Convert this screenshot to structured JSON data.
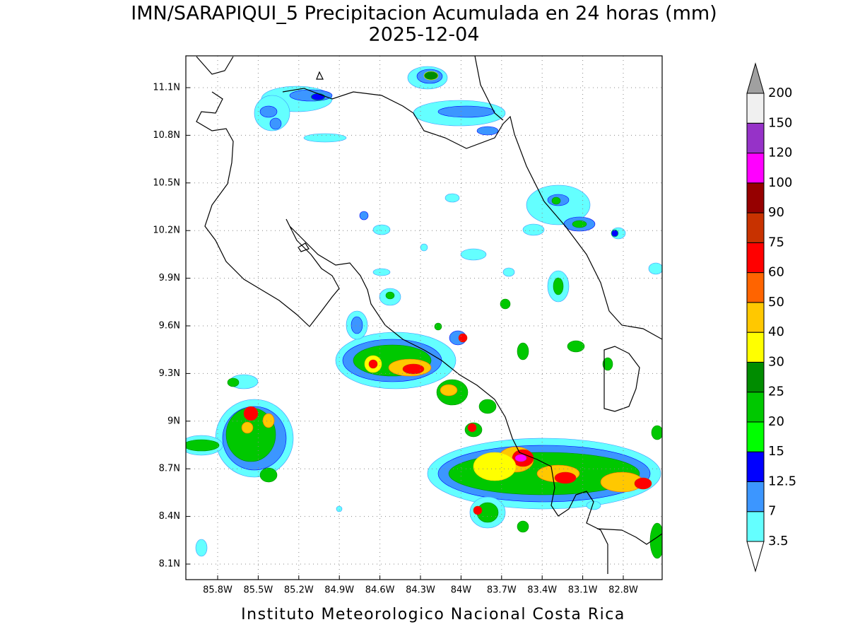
{
  "title": "IMN/SARAPIQUI_5 Precipitacion Acumulada en 24 horas (mm)",
  "subtitle": "2025-12-04",
  "map": {
    "lon_ticks": [
      {
        "value": -85.8,
        "label": "85.8W"
      },
      {
        "value": -85.5,
        "label": "85.5W"
      },
      {
        "value": -85.2,
        "label": "85.2W"
      },
      {
        "value": -84.9,
        "label": "84.9W"
      },
      {
        "value": -84.6,
        "label": "84.6W"
      },
      {
        "value": -84.3,
        "label": "84.3W"
      },
      {
        "value": -84.0,
        "label": "84W"
      },
      {
        "value": -83.7,
        "label": "83.7W"
      },
      {
        "value": -83.4,
        "label": "83.4W"
      },
      {
        "value": -83.1,
        "label": "83.1W"
      },
      {
        "value": -82.8,
        "label": "82.8W"
      }
    ],
    "lat_ticks": [
      {
        "value": 11.1,
        "label": "11.1N"
      },
      {
        "value": 10.8,
        "label": "10.8N"
      },
      {
        "value": 10.5,
        "label": "10.5N"
      },
      {
        "value": 10.2,
        "label": "10.2N"
      },
      {
        "value": 9.9,
        "label": "9.9N"
      },
      {
        "value": 9.6,
        "label": "9.6N"
      },
      {
        "value": 9.3,
        "label": "9.3N"
      },
      {
        "value": 9.0,
        "label": "9N"
      },
      {
        "value": 8.7,
        "label": "8.7N"
      },
      {
        "value": 8.4,
        "label": "8.4N"
      },
      {
        "value": 8.1,
        "label": "8.1N"
      }
    ],
    "grid": true
  },
  "colorbar": {
    "levels": [
      3.5,
      7,
      12.5,
      15,
      20,
      25,
      30,
      40,
      50,
      60,
      75,
      90,
      100,
      120,
      150,
      200
    ],
    "colors": [
      "#64ffff",
      "#3c96ff",
      "#0000ff",
      "#00ff00",
      "#00c800",
      "#008c00",
      "#ffff00",
      "#ffc800",
      "#ff6400",
      "#ff0000",
      "#c83200",
      "#960000",
      "#ff00ff",
      "#9632c8",
      "#f0f0f0"
    ],
    "under_color": "#ffffff",
    "over_color": "#a0a0a0"
  },
  "footer": "Instituto Meteorologico Nacional Costa Rica"
}
